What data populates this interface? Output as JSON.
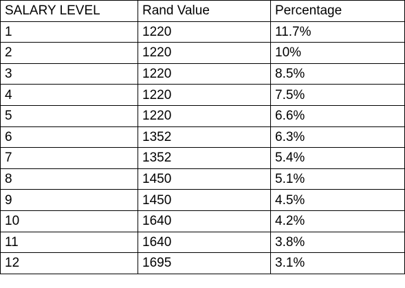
{
  "table": {
    "headers": [
      "SALARY LEVEL",
      "Rand Value",
      "Percentage"
    ],
    "rows": [
      [
        "1",
        "1220",
        "11.7%"
      ],
      [
        "2",
        "1220",
        "10%"
      ],
      [
        "3",
        "1220",
        "8.5%"
      ],
      [
        "4",
        "1220",
        "7.5%"
      ],
      [
        "5",
        "1220",
        "6.6%"
      ],
      [
        "6",
        "1352",
        "6.3%"
      ],
      [
        "7",
        "1352",
        "5.4%"
      ],
      [
        "8",
        "1450",
        "5.1%"
      ],
      [
        "9",
        "1450",
        "4.5%"
      ],
      [
        "10",
        "1640",
        "4.2%"
      ],
      [
        "11",
        "1640",
        "3.8%"
      ],
      [
        "12",
        "1695",
        "3.1%"
      ]
    ]
  }
}
